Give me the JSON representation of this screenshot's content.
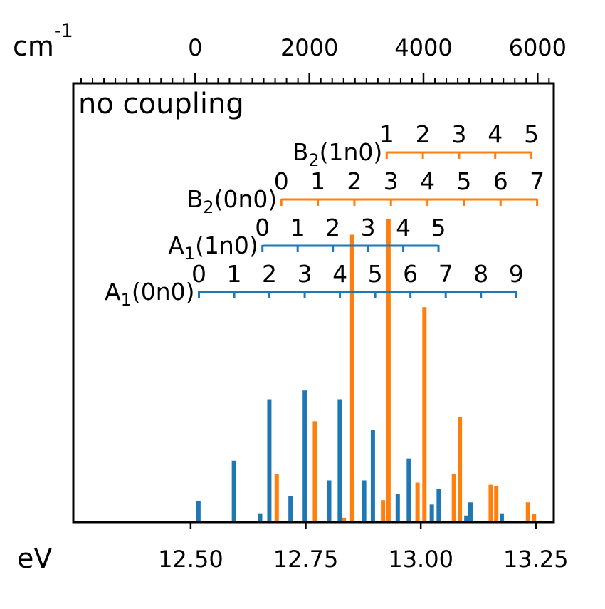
{
  "chart_data": {
    "type": "bar",
    "annotation": "no coupling",
    "x_unit_bottom": "eV",
    "x_unit_top_base": "cm",
    "x_unit_top_exp": "-1",
    "xlim": [
      12.245,
      13.289
    ],
    "bottom_ticks": [
      12.5,
      12.75,
      13.0,
      13.25
    ],
    "bottom_tick_labels": [
      "12.50",
      "12.75",
      "13.00",
      "13.25"
    ],
    "top_origin_ev": 12.51,
    "top_ticks_cm": [
      0,
      2000,
      4000,
      6000
    ],
    "top_tick_labels": [
      "0",
      "2000",
      "4000",
      "6000"
    ],
    "top_minor_step_cm": 200,
    "ylim": [
      0,
      1.0
    ],
    "colors": {
      "A1": "#1f77b4",
      "B2": "#ff7f0e"
    },
    "progressions": [
      {
        "label_main": "A",
        "label_sub": "1",
        "label_rest": "(0n0)",
        "color": "#1f77b4",
        "origin": 12.518,
        "spacing": 0.0766,
        "numbers": [
          "0",
          "1",
          "2",
          "3",
          "4",
          "5",
          "6",
          "7",
          "8",
          "9"
        ]
      },
      {
        "label_main": "A",
        "label_sub": "1",
        "label_rest": "(1n0)",
        "color": "#1f77b4",
        "origin": 12.656,
        "spacing": 0.0765,
        "numbers": [
          "0",
          "1",
          "2",
          "3",
          "4",
          "5"
        ]
      },
      {
        "label_main": "B",
        "label_sub": "2",
        "label_rest": "(0n0)",
        "color": "#ff7f0e",
        "origin": 12.697,
        "spacing": 0.0794,
        "numbers": [
          "0",
          "1",
          "2",
          "3",
          "4",
          "5",
          "6",
          "7"
        ]
      },
      {
        "label_main": "B",
        "label_sub": "2",
        "label_rest": "(1n0)",
        "color": "#ff7f0e",
        "origin": 12.926,
        "spacing": 0.0786,
        "numbers": [
          "1",
          "2",
          "3",
          "4",
          "5"
        ]
      }
    ],
    "series": [
      {
        "name": "A1",
        "color": "#1f77b4",
        "x": [
          12.517,
          12.594,
          12.651,
          12.671,
          12.717,
          12.748,
          12.801,
          12.824,
          12.877,
          12.896,
          12.95,
          12.974,
          13.024,
          13.039,
          13.099,
          13.108,
          13.176
        ],
        "y": [
          0.048,
          0.14,
          0.02,
          0.28,
          0.06,
          0.3,
          0.095,
          0.28,
          0.095,
          0.21,
          0.065,
          0.145,
          0.04,
          0.075,
          0.015,
          0.045,
          0.02
        ]
      },
      {
        "name": "B2",
        "color": "#ff7f0e",
        "x": [
          12.687,
          12.77,
          12.833,
          12.851,
          12.918,
          12.93,
          12.993,
          13.008,
          13.072,
          13.085,
          13.152,
          13.164,
          13.233,
          13.246
        ],
        "y": [
          0.11,
          0.23,
          0.01,
          0.655,
          0.05,
          0.69,
          0.09,
          0.49,
          0.11,
          0.24,
          0.085,
          0.082,
          0.045,
          0.018
        ]
      }
    ]
  }
}
